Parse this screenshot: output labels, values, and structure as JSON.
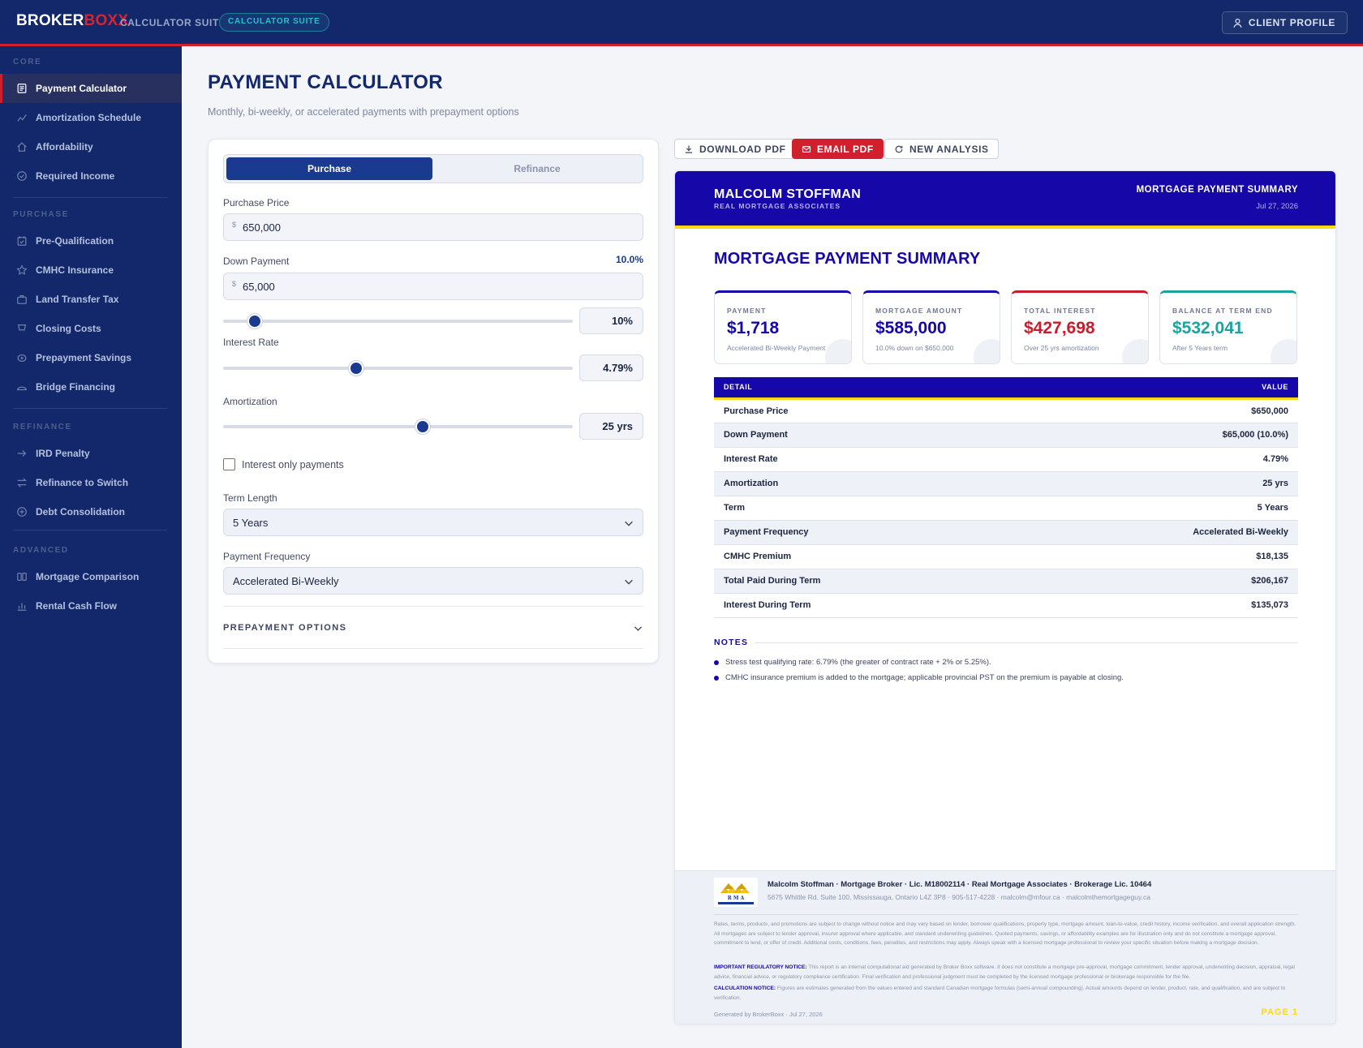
{
  "topbar": {
    "brand_part1": "BROKER",
    "brand_part2": "BOXX",
    "suite_label": "CALCULATOR SUITE",
    "badge": "CALCULATOR SUITE",
    "client_profile": "CLIENT PROFILE"
  },
  "sidebar": {
    "core": "CORE",
    "core_items": [
      "Payment Calculator",
      "Amortization Schedule",
      "Affordability",
      "Required Income"
    ],
    "purchase": "PURCHASE",
    "purchase_items": [
      "Pre-Qualification",
      "CMHC Insurance",
      "Land Transfer Tax",
      "Closing Costs",
      "Prepayment Savings",
      "Bridge Financing"
    ],
    "refinance": "REFINANCE",
    "refinance_items": [
      "IRD Penalty",
      "Refinance to Switch",
      "Debt Consolidation"
    ],
    "advanced": "ADVANCED",
    "advanced_items": [
      "Mortgage Comparison",
      "Rental Cash Flow"
    ]
  },
  "page": {
    "title": "PAYMENT CALCULATOR",
    "subtitle": "Monthly, bi-weekly, or accelerated payments with prepayment options"
  },
  "form": {
    "tab_purchase": "Purchase",
    "tab_refinance": "Refinance",
    "purchase_price_label": "Purchase Price",
    "currency": "$",
    "purchase_price": "650,000",
    "down_payment_label": "Down Payment",
    "down_payment_pct": "10.0%",
    "down_payment": "65,000",
    "down_slider_value": "10%",
    "down_slider_fraction": 0.09,
    "interest_label": "Interest Rate",
    "interest_value": "4.79%",
    "interest_slider_fraction": 0.38,
    "amort_label": "Amortization",
    "amort_value": "25 yrs",
    "amort_slider_fraction": 0.57,
    "interest_only_label": "Interest only payments",
    "term_label": "Term Length",
    "term_value": "5 Years",
    "freq_label": "Payment Frequency",
    "freq_value": "Accelerated Bi-Weekly",
    "prepay_label": "PREPAYMENT OPTIONS"
  },
  "actions": {
    "download": "DOWNLOAD PDF",
    "email": "EMAIL PDF",
    "new": "NEW ANALYSIS"
  },
  "report": {
    "broker_name": "MALCOLM STOFFMAN",
    "company": "REAL MORTGAGE ASSOCIATES",
    "header_title": "MORTGAGE PAYMENT SUMMARY",
    "date": "Jul 27, 2026",
    "title": "MORTGAGE PAYMENT SUMMARY",
    "kpis": [
      {
        "label": "PAYMENT",
        "value": "$1,718",
        "sub": "Accelerated Bi-Weekly Payment",
        "color": "#1607a8"
      },
      {
        "label": "MORTGAGE AMOUNT",
        "value": "$585,000",
        "sub": "10.0% down on $650,000",
        "color": "#1607a8"
      },
      {
        "label": "TOTAL INTEREST",
        "value": "$427,698",
        "sub": "Over 25 yrs amortization",
        "color": "#c81e2c"
      },
      {
        "label": "BALANCE AT TERM END",
        "value": "$532,041",
        "sub": "After 5 Years term",
        "color": "#1ba3a0"
      }
    ],
    "table_head_detail": "DETAIL",
    "table_head_value": "VALUE",
    "rows": [
      {
        "k": "Purchase Price",
        "v": "$650,000"
      },
      {
        "k": "Down Payment",
        "v": "$65,000 (10.0%)"
      },
      {
        "k": "Interest Rate",
        "v": "4.79%"
      },
      {
        "k": "Amortization",
        "v": "25 yrs"
      },
      {
        "k": "Term",
        "v": "5 Years"
      },
      {
        "k": "Payment Frequency",
        "v": "Accelerated Bi-Weekly"
      },
      {
        "k": "CMHC Premium",
        "v": "$18,135"
      },
      {
        "k": "Total Paid During Term",
        "v": "$206,167"
      },
      {
        "k": "Interest During Term",
        "v": "$135,073"
      }
    ],
    "notes_title": "NOTES",
    "notes": [
      "Stress test qualifying rate: 6.79% (the greater of contract rate + 2% or 5.25%).",
      "CMHC insurance premium is added to the mortgage; applicable provincial PST on the premium is payable at closing."
    ],
    "footer": {
      "logo_text": "R M A",
      "line1": "Malcolm Stoffman  ·  Mortgage Broker  ·  Lic. M18002114  ·  Real Mortgage Associates  ·  Brokerage Lic. 10464",
      "line2": "5675 Whittle Rd. Suite 100, Mississauga, Ontario L4Z 3P8  ·  905-517-4228  ·  malcolm@mfour.ca  ·  malcolmthemortgageguy.ca",
      "disclaimer": "Rates, terms, products, and promotions are subject to change without notice and may vary based on lender, borrower qualifications, property type, mortgage amount, loan-to-value, credit history, income verification, and overall application strength. All mortgages are subject to lender approval, insurer approval where applicable, and standard underwriting guidelines. Quoted payments, savings, or affordability examples are for illustration only and do not constitute a mortgage approval, commitment to lend, or offer of credit. Additional costs, conditions, fees, penalties, and restrictions may apply. Always speak with a licensed mortgage professional to review your specific situation before making a mortgage decision.",
      "regulatory_label": "IMPORTANT REGULATORY NOTICE:",
      "regulatory": "This report is an internal computational aid generated by Broker Boxx software. It does not constitute a mortgage pre-approval, mortgage commitment, lender approval, underwriting decision, appraisal, legal advice, financial advice, or regulatory compliance certification. Final verification and professional judgment must be completed by the licensed mortgage professional or brokerage responsible for the file.",
      "calc_label": "CALCULATION NOTICE:",
      "calc": "Figures are estimates generated from the values entered and standard Canadian mortgage formulas (semi-annual compounding). Actual amounts depend on lender, product, rate, and qualification, and are subject to verification.",
      "generated": "Generated by BrokerBoxx · Jul 27, 2026",
      "page": "PAGE 1"
    }
  }
}
